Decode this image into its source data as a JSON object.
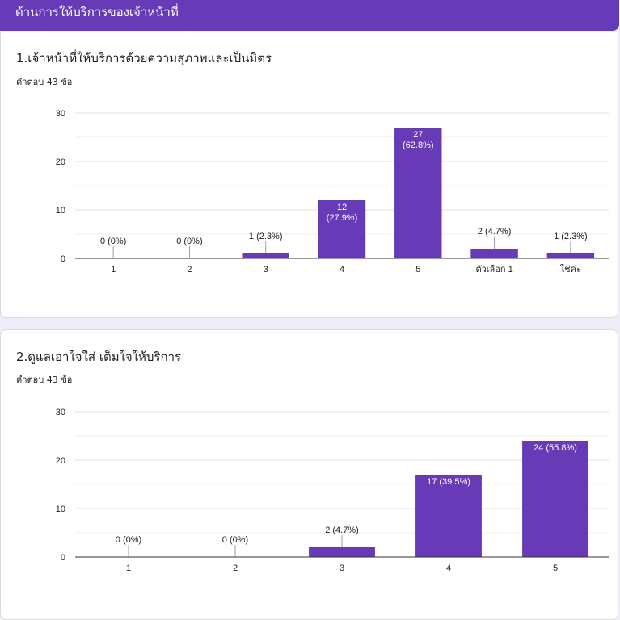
{
  "section": {
    "title": "ด้านการให้บริการของเจ้าหน้าที่"
  },
  "colors": {
    "header": "#673ab7",
    "bar": "#673ab7",
    "background": "#f0ebf8"
  },
  "questions": [
    {
      "title": "1.เจ้าหน้าที่ให้บริการด้วยความสุภาพและเป็นมิตร",
      "count_label": "คำตอบ 43 ข้อ"
    },
    {
      "title": "2.ดูแลเอาใจใส่ เต็มใจให้บริการ",
      "count_label": "คำตอบ 43 ข้อ"
    }
  ],
  "chart_data": [
    {
      "type": "bar",
      "categories": [
        "1",
        "2",
        "3",
        "4",
        "5",
        "ตัวเลือก 1",
        "ใช่ค่ะ"
      ],
      "values": [
        0,
        0,
        1,
        12,
        27,
        2,
        1
      ],
      "labels": [
        "0 (0%)",
        "0 (0%)",
        "1 (2.3%)",
        "12\n(27.9%)",
        "27\n(62.8%)",
        "2 (4.7%)",
        "1 (2.3%)"
      ],
      "ylim": [
        0,
        30
      ],
      "yticks": [
        0,
        10,
        20,
        30
      ],
      "grid": true
    },
    {
      "type": "bar",
      "categories": [
        "1",
        "2",
        "3",
        "4",
        "5"
      ],
      "values": [
        0,
        0,
        2,
        17,
        24
      ],
      "labels": [
        "0 (0%)",
        "0 (0%)",
        "2 (4.7%)",
        "17 (39.5%)",
        "24 (55.8%)"
      ],
      "ylim": [
        0,
        30
      ],
      "yticks": [
        0,
        10,
        20,
        30
      ],
      "grid": true
    }
  ]
}
